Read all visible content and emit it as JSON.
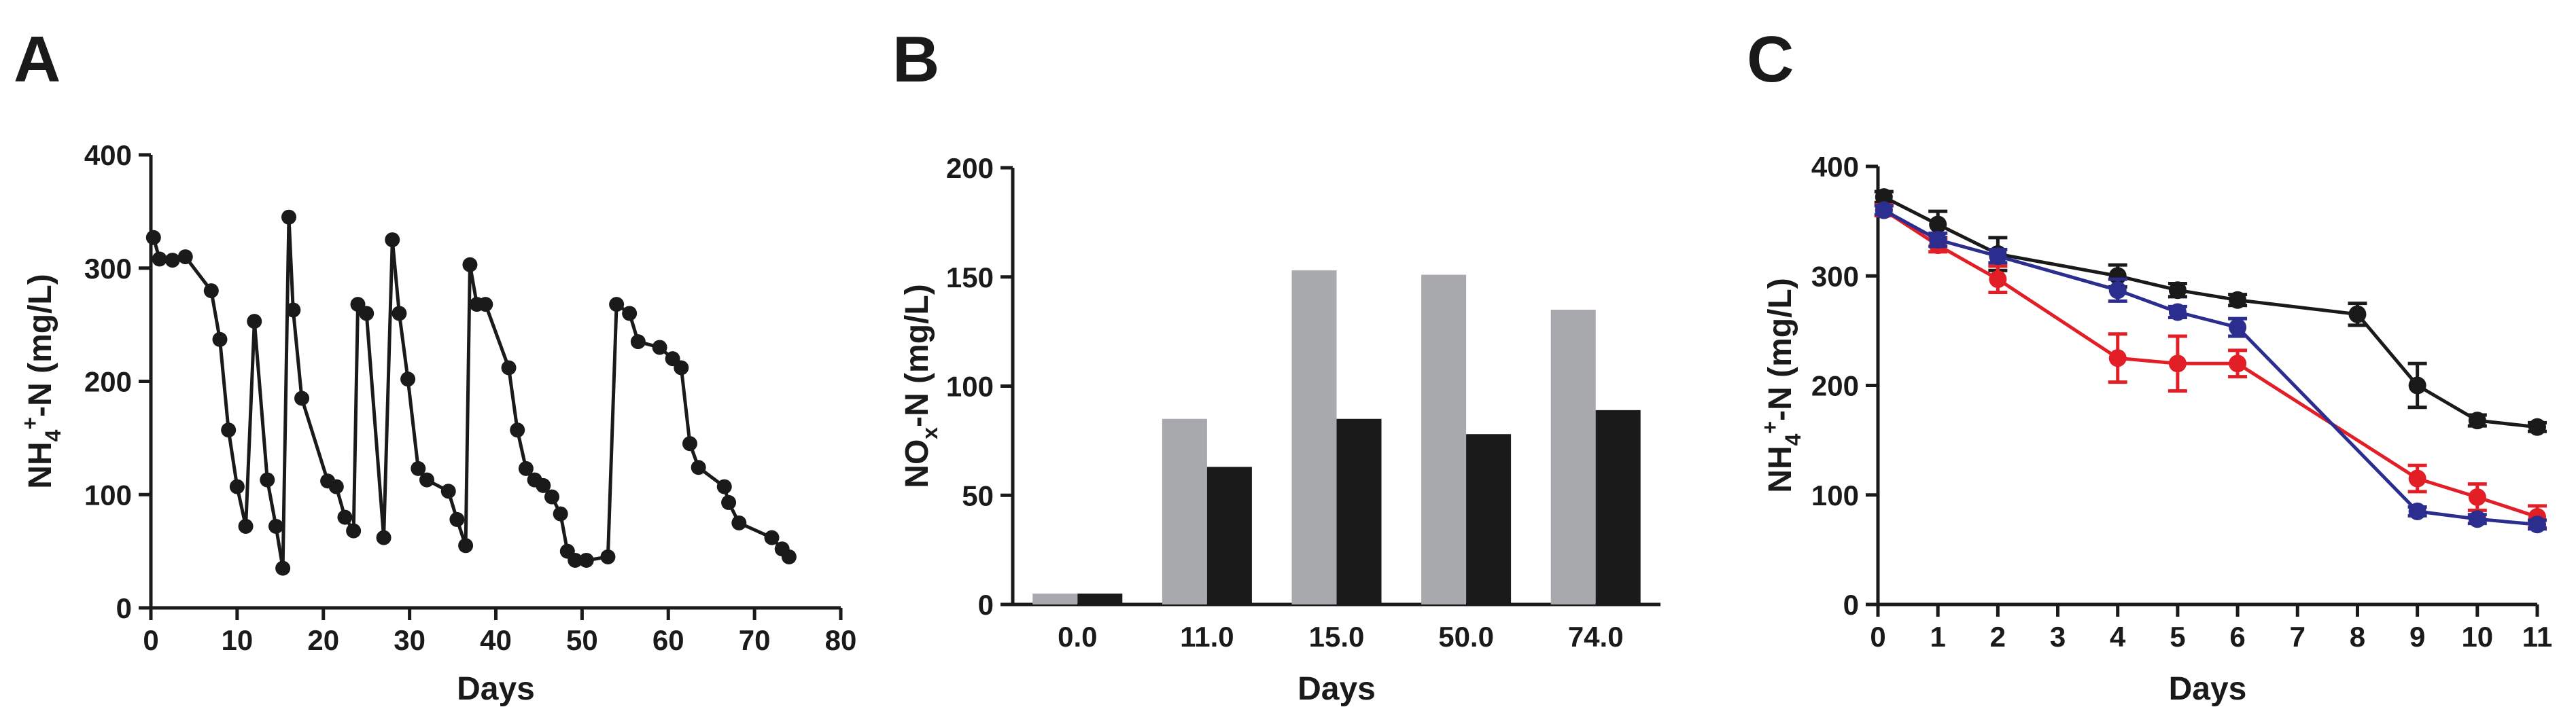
{
  "chart_data": [
    {
      "panel": "A",
      "type": "line",
      "ylabel": {
        "main": "NH",
        "sub": "4",
        "sup": "+",
        "rest": "-N (mg/L)"
      },
      "xlabel": "Days",
      "xlim": [
        0,
        80
      ],
      "ylim": [
        0,
        400
      ],
      "xticks": [
        "0",
        "10",
        "20",
        "30",
        "40",
        "50",
        "60",
        "70",
        "80"
      ],
      "yticks": [
        "0",
        "100",
        "200",
        "300",
        "400"
      ],
      "series": [
        {
          "color": "#1a1a1a",
          "points": [
            [
              0.3,
              327
            ],
            [
              1,
              308
            ],
            [
              2.5,
              307
            ],
            [
              4,
              310
            ],
            [
              7,
              280
            ],
            [
              8,
              237
            ],
            [
              9,
              157
            ],
            [
              10,
              107
            ],
            [
              11,
              72
            ],
            [
              12,
              253
            ],
            [
              13.5,
              113
            ],
            [
              14.5,
              72
            ],
            [
              15.3,
              35
            ],
            [
              16,
              345
            ],
            [
              16.5,
              263
            ],
            [
              17.5,
              185
            ],
            [
              20.5,
              112
            ],
            [
              21.5,
              107
            ],
            [
              22.5,
              80
            ],
            [
              23.5,
              68
            ],
            [
              24,
              268
            ],
            [
              25,
              260
            ],
            [
              27,
              62
            ],
            [
              28,
              325
            ],
            [
              28.8,
              260
            ],
            [
              29.8,
              202
            ],
            [
              31,
              123
            ],
            [
              32,
              113
            ],
            [
              34.5,
              103
            ],
            [
              35.5,
              78
            ],
            [
              36.5,
              55
            ],
            [
              37,
              303
            ],
            [
              37.8,
              268
            ],
            [
              38.8,
              268
            ],
            [
              41.5,
              212
            ],
            [
              42.5,
              157
            ],
            [
              43.5,
              123
            ],
            [
              44.5,
              113
            ],
            [
              45.5,
              108
            ],
            [
              46.5,
              98
            ],
            [
              47.5,
              83
            ],
            [
              48.3,
              50
            ],
            [
              49.2,
              42
            ],
            [
              50.5,
              42
            ],
            [
              53,
              45
            ],
            [
              54,
              268
            ],
            [
              55.5,
              260
            ],
            [
              56.5,
              235
            ],
            [
              59,
              230
            ],
            [
              60.5,
              220
            ],
            [
              61.5,
              212
            ],
            [
              62.5,
              145
            ],
            [
              63.5,
              124
            ],
            [
              66.5,
              107
            ],
            [
              67,
              93
            ],
            [
              68.2,
              75
            ],
            [
              72,
              62
            ],
            [
              73.2,
              52
            ],
            [
              74,
              45
            ]
          ]
        }
      ]
    },
    {
      "panel": "B",
      "type": "bar",
      "ylabel": {
        "main": "NO",
        "sub": "x",
        "rest": "-N (mg/L)"
      },
      "xlabel": "Days",
      "ylim": [
        0,
        200
      ],
      "yticks": [
        "0",
        "50",
        "100",
        "150",
        "200"
      ],
      "categories": [
        "0.0",
        "11.0",
        "15.0",
        "50.0",
        "74.0"
      ],
      "series": [
        {
          "color": "#a7a9ac",
          "values": [
            5,
            85,
            153,
            151,
            135
          ]
        },
        {
          "color": "#1a1a1a",
          "values": [
            5,
            63,
            85,
            78,
            89
          ]
        }
      ]
    },
    {
      "panel": "C",
      "type": "line",
      "ylabel": {
        "main": "NH",
        "sub": "4",
        "sup": "+",
        "rest": "-N (mg/L)"
      },
      "xlabel": "Days",
      "xlim": [
        0,
        11
      ],
      "ylim": [
        0,
        400
      ],
      "xticks": [
        "0",
        "1",
        "2",
        "3",
        "4",
        "5",
        "6",
        "7",
        "8",
        "9",
        "10",
        "11"
      ],
      "yticks": [
        "0",
        "100",
        "200",
        "300",
        "400"
      ],
      "series": [
        {
          "color": "#1a1a1a",
          "x": [
            0.1,
            1,
            2,
            4,
            5,
            6,
            8,
            9,
            10,
            11
          ],
          "y": [
            372,
            347,
            320,
            300,
            287,
            278,
            265,
            200,
            168,
            162
          ],
          "err": [
            5,
            12,
            15,
            10,
            6,
            5,
            10,
            20,
            5,
            4
          ]
        },
        {
          "color": "#e21f26",
          "x": [
            0.1,
            1,
            2,
            4,
            5,
            6,
            9,
            10,
            11
          ],
          "y": [
            360,
            328,
            297,
            225,
            220,
            220,
            115,
            98,
            80
          ],
          "err": [
            5,
            6,
            12,
            22,
            25,
            12,
            12,
            12,
            10
          ]
        },
        {
          "color": "#2b2d8f",
          "x": [
            0.1,
            1,
            2,
            4,
            5,
            6,
            9,
            10,
            11
          ],
          "y": [
            360,
            333,
            318,
            287,
            267,
            253,
            85,
            78,
            73
          ],
          "err": [
            4,
            6,
            6,
            10,
            5,
            8,
            4,
            4,
            4
          ]
        }
      ]
    }
  ]
}
